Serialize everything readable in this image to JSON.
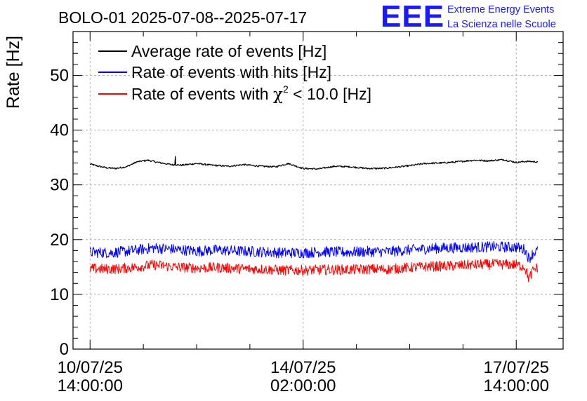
{
  "chart_data": {
    "type": "line",
    "title": "BOLO-01 2025-07-08--2025-07-17",
    "logo": {
      "mark": "EEE",
      "line1": "Extreme Energy Events",
      "line2": "La Scienza nelle Scuole",
      "color": "#1a1aff"
    },
    "ylabel": "Rate [Hz]",
    "xlabel": "",
    "ylim": [
      0,
      58
    ],
    "xlim_hours": [
      -8,
      222
    ],
    "yticks": [
      "0",
      "10",
      "20",
      "30",
      "40",
      "50"
    ],
    "ytick_values": [
      0,
      10,
      20,
      30,
      40,
      50
    ],
    "xticks": [
      {
        "hours": 0,
        "date": "10/07/25",
        "time": "14:00:00"
      },
      {
        "hours": 100,
        "date": "14/07/25",
        "time": "02:00:00"
      },
      {
        "hours": 200,
        "date": "17/07/25",
        "time": "14:00:00"
      }
    ],
    "grid": true,
    "legend_position": "top-left",
    "series": [
      {
        "name": "Average rate of events [Hz]",
        "color": "#000000",
        "stroke": 1.2,
        "x_start": 0,
        "x_end": 210,
        "noise": 0.15,
        "x": [
          0,
          4,
          8,
          12,
          17,
          22,
          27,
          32,
          38,
          43,
          50,
          57,
          65,
          72,
          80,
          87,
          93,
          100,
          107,
          115,
          122,
          130,
          137,
          143,
          150,
          157,
          165,
          172,
          180,
          187,
          194,
          200,
          205,
          210
        ],
        "values": [
          33.8,
          33.4,
          33.1,
          33.0,
          33.3,
          34.2,
          34.5,
          34.1,
          33.7,
          33.6,
          33.9,
          33.6,
          33.4,
          33.7,
          33.4,
          33.3,
          33.9,
          33.0,
          32.9,
          33.4,
          33.3,
          33.0,
          33.0,
          33.2,
          33.5,
          33.9,
          34.0,
          34.2,
          34.5,
          34.4,
          34.6,
          34.1,
          34.3,
          34.2
        ],
        "spikes": [
          {
            "x": 40,
            "value": 35.2
          }
        ]
      },
      {
        "name": "Rate of events with hits [Hz]",
        "color": "#0000ff",
        "stroke": 1,
        "x_start": 0,
        "x_end": 210,
        "noise": 1.0,
        "x": [
          0,
          10,
          20,
          30,
          40,
          50,
          60,
          70,
          80,
          90,
          100,
          110,
          120,
          130,
          140,
          150,
          160,
          170,
          180,
          190,
          200,
          204,
          206,
          208,
          210
        ],
        "values": [
          17.7,
          17.6,
          18.0,
          18.5,
          18.2,
          17.9,
          18.1,
          17.9,
          17.8,
          17.6,
          17.6,
          17.8,
          17.7,
          17.8,
          17.8,
          18.1,
          18.4,
          18.5,
          18.6,
          18.7,
          18.6,
          18.2,
          16.5,
          17.6,
          17.9
        ],
        "spikes": []
      },
      {
        "name": "Rate of events with χ² < 10.0 [Hz]",
        "legend_parts": {
          "prefix": "Rate of events with ",
          "symbol": "χ",
          "sup": "2",
          "suffix": " < 10.0 [Hz]"
        },
        "color": "#ff0000",
        "stroke": 1,
        "x_start": 0,
        "x_end": 210,
        "noise": 0.95,
        "x": [
          0,
          10,
          20,
          30,
          40,
          50,
          60,
          70,
          80,
          90,
          100,
          110,
          120,
          130,
          140,
          150,
          160,
          170,
          180,
          190,
          200,
          204,
          206,
          208,
          210
        ],
        "values": [
          14.7,
          14.6,
          14.9,
          15.4,
          15.0,
          14.8,
          14.9,
          14.7,
          14.6,
          14.4,
          14.4,
          14.5,
          14.5,
          14.6,
          14.6,
          14.9,
          15.1,
          15.2,
          15.4,
          15.5,
          15.4,
          15.0,
          12.8,
          14.5,
          14.9
        ],
        "spikes": []
      }
    ]
  }
}
